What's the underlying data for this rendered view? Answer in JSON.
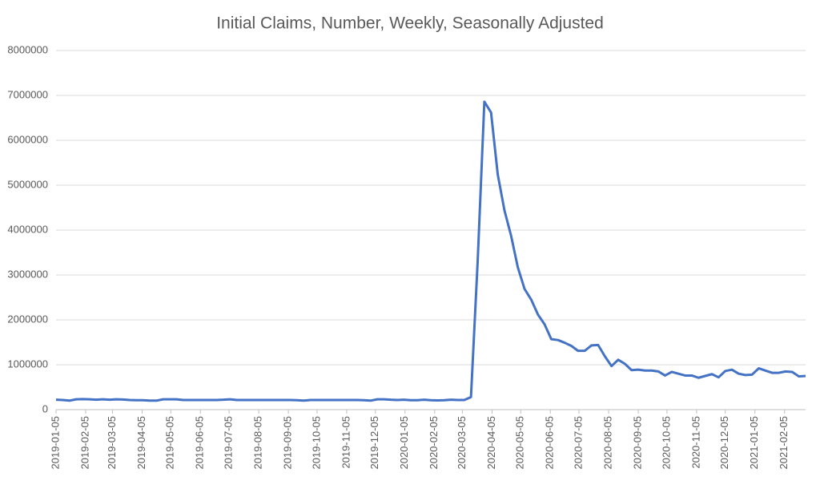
{
  "chart_data": {
    "type": "line",
    "title": "Initial Claims, Number, Weekly, Seasonally Adjusted",
    "x": [
      "2019-01-05",
      "2019-01-12",
      "2019-01-19",
      "2019-01-26",
      "2019-02-02",
      "2019-02-09",
      "2019-02-16",
      "2019-02-23",
      "2019-03-02",
      "2019-03-09",
      "2019-03-16",
      "2019-03-23",
      "2019-03-30",
      "2019-04-06",
      "2019-04-13",
      "2019-04-20",
      "2019-04-27",
      "2019-05-04",
      "2019-05-11",
      "2019-05-18",
      "2019-05-25",
      "2019-06-01",
      "2019-06-08",
      "2019-06-15",
      "2019-06-22",
      "2019-06-29",
      "2019-07-06",
      "2019-07-13",
      "2019-07-20",
      "2019-07-27",
      "2019-08-03",
      "2019-08-10",
      "2019-08-17",
      "2019-08-24",
      "2019-08-31",
      "2019-09-07",
      "2019-09-14",
      "2019-09-21",
      "2019-09-28",
      "2019-10-05",
      "2019-10-12",
      "2019-10-19",
      "2019-10-26",
      "2019-11-02",
      "2019-11-09",
      "2019-11-16",
      "2019-11-23",
      "2019-11-30",
      "2019-12-07",
      "2019-12-14",
      "2019-12-21",
      "2019-12-28",
      "2020-01-04",
      "2020-01-11",
      "2020-01-18",
      "2020-01-25",
      "2020-02-01",
      "2020-02-08",
      "2020-02-15",
      "2020-02-22",
      "2020-02-29",
      "2020-03-07",
      "2020-03-14",
      "2020-03-21",
      "2020-03-28",
      "2020-04-04",
      "2020-04-11",
      "2020-04-18",
      "2020-04-25",
      "2020-05-02",
      "2020-05-09",
      "2020-05-16",
      "2020-05-23",
      "2020-05-30",
      "2020-06-06",
      "2020-06-13",
      "2020-06-20",
      "2020-06-27",
      "2020-07-04",
      "2020-07-11",
      "2020-07-18",
      "2020-07-25",
      "2020-08-01",
      "2020-08-08",
      "2020-08-15",
      "2020-08-22",
      "2020-08-29",
      "2020-09-05",
      "2020-09-12",
      "2020-09-19",
      "2020-09-26",
      "2020-10-03",
      "2020-10-10",
      "2020-10-17",
      "2020-10-24",
      "2020-10-31",
      "2020-11-07",
      "2020-11-14",
      "2020-11-21",
      "2020-11-28",
      "2020-12-05",
      "2020-12-12",
      "2020-12-19",
      "2020-12-26",
      "2021-01-02",
      "2021-01-09",
      "2021-01-16",
      "2021-01-23",
      "2021-01-30",
      "2021-02-06",
      "2021-02-13",
      "2021-02-20",
      "2021-02-27"
    ],
    "series": [
      {
        "color": "#4472c4",
        "values": [
          220000,
          215000,
          200000,
          230000,
          235000,
          230000,
          220000,
          230000,
          220000,
          230000,
          225000,
          215000,
          210000,
          210000,
          200000,
          200000,
          230000,
          230000,
          230000,
          215000,
          215000,
          215000,
          215000,
          215000,
          215000,
          220000,
          230000,
          215000,
          215000,
          215000,
          215000,
          215000,
          215000,
          215000,
          215000,
          215000,
          210000,
          200000,
          215000,
          215000,
          215000,
          215000,
          215000,
          215000,
          215000,
          215000,
          210000,
          200000,
          230000,
          230000,
          220000,
          215000,
          220000,
          210000,
          210000,
          220000,
          210000,
          205000,
          210000,
          220000,
          215000,
          215000,
          280000,
          3300000,
          6860000,
          6620000,
          5240000,
          4440000,
          3870000,
          3170000,
          2690000,
          2450000,
          2120000,
          1900000,
          1570000,
          1550000,
          1490000,
          1420000,
          1310000,
          1310000,
          1430000,
          1440000,
          1190000,
          970000,
          1110000,
          1020000,
          880000,
          890000,
          870000,
          870000,
          850000,
          760000,
          840000,
          800000,
          760000,
          760000,
          710000,
          750000,
          790000,
          720000,
          860000,
          890000,
          800000,
          770000,
          780000,
          920000,
          870000,
          820000,
          820000,
          850000,
          840000,
          740000,
          750000
        ]
      }
    ],
    "xlim": [
      "2019-01-05",
      "2021-02-27"
    ],
    "xticks": [
      "2019-01-05",
      "2019-02-05",
      "2019-03-05",
      "2019-04-05",
      "2019-05-05",
      "2019-06-05",
      "2019-07-05",
      "2019-08-05",
      "2019-09-05",
      "2019-10-05",
      "2019-11-05",
      "2019-12-05",
      "2020-01-05",
      "2020-02-05",
      "2020-03-05",
      "2020-04-05",
      "2020-05-05",
      "2020-06-05",
      "2020-07-05",
      "2020-08-05",
      "2020-09-05",
      "2020-10-05",
      "2020-11-05",
      "2020-12-05",
      "2021-01-05",
      "2021-02-05"
    ],
    "ylim": [
      0,
      8000000
    ],
    "yticks": [
      0,
      1000000,
      2000000,
      3000000,
      4000000,
      5000000,
      6000000,
      7000000,
      8000000
    ],
    "grid": true
  }
}
